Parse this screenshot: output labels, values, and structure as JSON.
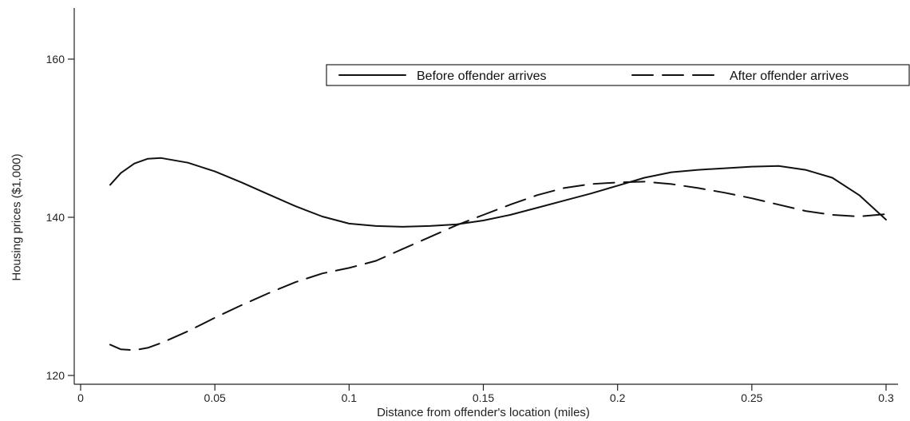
{
  "chart_data": {
    "type": "line",
    "xlabel": "Distance from offender's location (miles)",
    "ylabel": "Housing prices ($1,000)",
    "xlim": [
      0,
      0.3
    ],
    "ylim": [
      120,
      160
    ],
    "xticks": [
      0,
      0.05,
      0.1,
      0.15,
      0.2,
      0.25,
      0.3
    ],
    "xtick_labels": [
      "0",
      "0.05",
      "0.1",
      "0.15",
      "0.2",
      "0.25",
      "0.3"
    ],
    "yticks": [
      120,
      140,
      160
    ],
    "ytick_labels": [
      "120",
      "140",
      "160"
    ],
    "legend": "top-right",
    "series": [
      {
        "name": "Before offender arrives",
        "style": "solid",
        "points": [
          [
            0.011,
            144.1
          ],
          [
            0.015,
            145.6
          ],
          [
            0.02,
            146.8
          ],
          [
            0.025,
            147.4
          ],
          [
            0.03,
            147.5
          ],
          [
            0.04,
            146.9
          ],
          [
            0.05,
            145.8
          ],
          [
            0.06,
            144.4
          ],
          [
            0.07,
            142.9
          ],
          [
            0.08,
            141.4
          ],
          [
            0.09,
            140.1
          ],
          [
            0.1,
            139.2
          ],
          [
            0.11,
            138.9
          ],
          [
            0.12,
            138.8
          ],
          [
            0.13,
            138.9
          ],
          [
            0.14,
            139.1
          ],
          [
            0.15,
            139.6
          ],
          [
            0.16,
            140.3
          ],
          [
            0.17,
            141.2
          ],
          [
            0.18,
            142.1
          ],
          [
            0.19,
            143.0
          ],
          [
            0.2,
            144.0
          ],
          [
            0.21,
            145.0
          ],
          [
            0.22,
            145.7
          ],
          [
            0.23,
            146.0
          ],
          [
            0.24,
            146.2
          ],
          [
            0.25,
            146.4
          ],
          [
            0.26,
            146.5
          ],
          [
            0.27,
            146.0
          ],
          [
            0.28,
            145.0
          ],
          [
            0.29,
            142.8
          ],
          [
            0.3,
            139.7
          ]
        ]
      },
      {
        "name": "After offender arrives",
        "style": "dashed",
        "points": [
          [
            0.011,
            123.9
          ],
          [
            0.015,
            123.3
          ],
          [
            0.02,
            123.2
          ],
          [
            0.025,
            123.5
          ],
          [
            0.03,
            124.1
          ],
          [
            0.04,
            125.6
          ],
          [
            0.05,
            127.3
          ],
          [
            0.06,
            128.9
          ],
          [
            0.07,
            130.4
          ],
          [
            0.08,
            131.8
          ],
          [
            0.09,
            132.9
          ],
          [
            0.1,
            133.6
          ],
          [
            0.11,
            134.5
          ],
          [
            0.12,
            136.0
          ],
          [
            0.13,
            137.5
          ],
          [
            0.14,
            139.0
          ],
          [
            0.15,
            140.3
          ],
          [
            0.16,
            141.6
          ],
          [
            0.17,
            142.8
          ],
          [
            0.18,
            143.7
          ],
          [
            0.19,
            144.2
          ],
          [
            0.2,
            144.4
          ],
          [
            0.21,
            144.5
          ],
          [
            0.22,
            144.2
          ],
          [
            0.23,
            143.7
          ],
          [
            0.24,
            143.1
          ],
          [
            0.25,
            142.4
          ],
          [
            0.26,
            141.6
          ],
          [
            0.27,
            140.8
          ],
          [
            0.28,
            140.3
          ],
          [
            0.29,
            140.1
          ],
          [
            0.3,
            140.4
          ]
        ]
      }
    ]
  }
}
